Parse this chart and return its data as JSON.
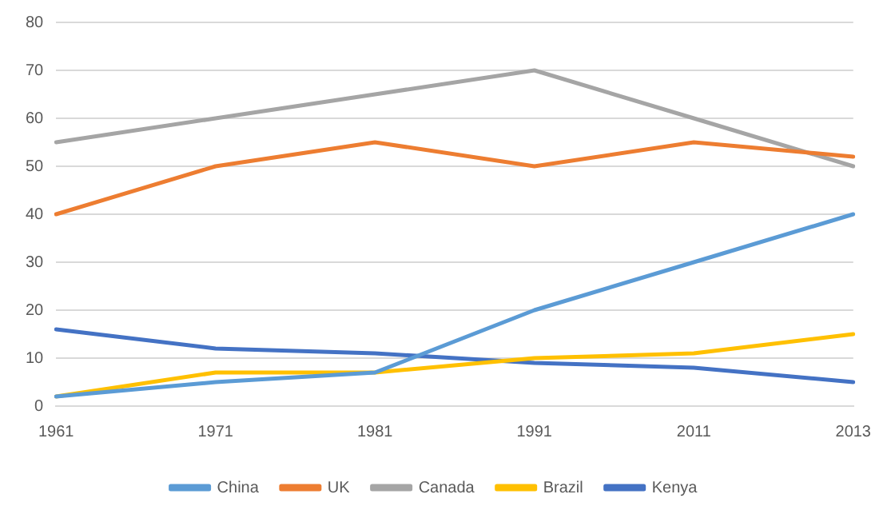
{
  "chart_data": {
    "type": "line",
    "categories": [
      "1961",
      "1971",
      "1981",
      "1991",
      "2011",
      "2013"
    ],
    "series": [
      {
        "name": "China",
        "color": "#5b9bd5",
        "values": [
          2,
          5,
          7,
          20,
          30,
          40
        ]
      },
      {
        "name": "UK",
        "color": "#ed7d31",
        "values": [
          40,
          50,
          55,
          50,
          55,
          52
        ]
      },
      {
        "name": "Canada",
        "color": "#a5a5a5",
        "values": [
          55,
          60,
          65,
          70,
          60,
          50
        ]
      },
      {
        "name": "Brazil",
        "color": "#ffc000",
        "values": [
          2,
          7,
          7,
          10,
          11,
          15
        ]
      },
      {
        "name": "Kenya",
        "color": "#4472c4",
        "values": [
          16,
          12,
          11,
          9,
          8,
          5
        ]
      }
    ],
    "ylim": [
      0,
      80
    ],
    "yticks": [
      0,
      10,
      20,
      30,
      40,
      50,
      60,
      70,
      80
    ],
    "grid": "y",
    "legend": "bottom",
    "marker": "none",
    "line_style": "solid"
  }
}
